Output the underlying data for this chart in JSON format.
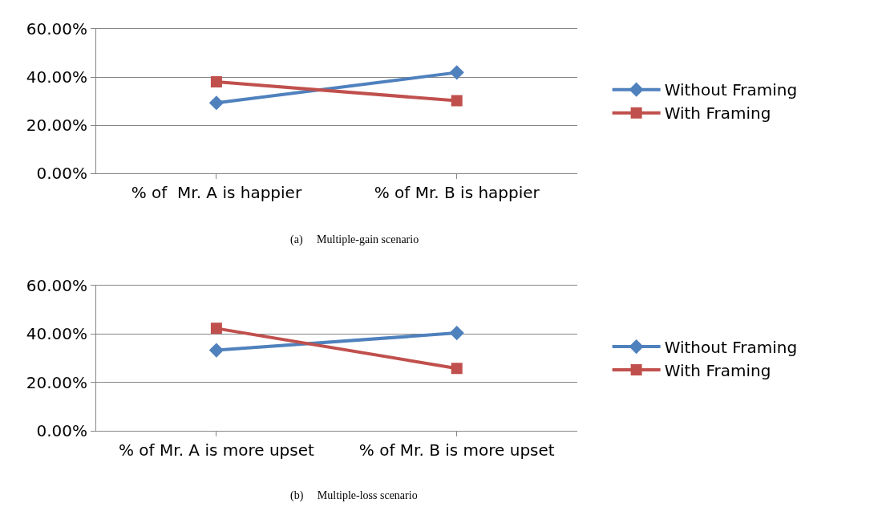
{
  "chart_data": [
    {
      "type": "line",
      "categories": [
        "% of  Mr. A is happier",
        "% of Mr. B is happier"
      ],
      "series": [
        {
          "name": "Without Framing",
          "color": "#4f81bd",
          "values": [
            29.3,
            41.9
          ],
          "marker": "diamond"
        },
        {
          "name": "With Framing",
          "color": "#c0504d",
          "values": [
            38.0,
            30.2
          ],
          "marker": "square"
        }
      ],
      "ylim": [
        0,
        60
      ],
      "yticks": [
        {
          "value": 0,
          "label": "0.00%"
        },
        {
          "value": 20,
          "label": "20.00%"
        },
        {
          "value": 40,
          "label": "40.00%"
        },
        {
          "value": 60,
          "label": "60.00%"
        }
      ],
      "grid": "y",
      "legend": "right",
      "line_style": "solid",
      "annotations": [
        "(a)     Multiple-gain scenario"
      ]
    },
    {
      "type": "line",
      "categories": [
        "% of Mr. A is more upset",
        "% of Mr. B is more upset"
      ],
      "series": [
        {
          "name": "Without Framing",
          "color": "#4f81bd",
          "values": [
            33.3,
            40.4
          ],
          "marker": "diamond"
        },
        {
          "name": "With Framing",
          "color": "#c0504d",
          "values": [
            42.3,
            25.8
          ],
          "marker": "square"
        }
      ],
      "ylim": [
        0,
        60
      ],
      "yticks": [
        {
          "value": 0,
          "label": "0.00%"
        },
        {
          "value": 20,
          "label": "20.00%"
        },
        {
          "value": 40,
          "label": "40.00%"
        },
        {
          "value": 60,
          "label": "60.00%"
        }
      ],
      "grid": "y",
      "legend": "right",
      "line_style": "solid",
      "annotations": [
        "(b)     Multiple-loss scenario"
      ]
    }
  ]
}
